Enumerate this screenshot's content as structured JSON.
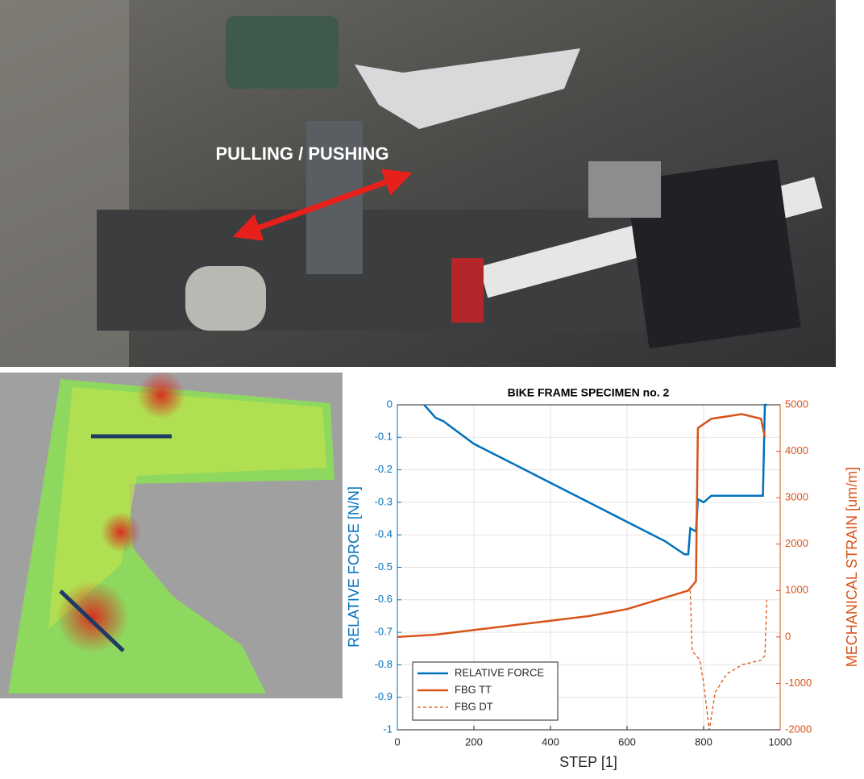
{
  "photo": {
    "annotation": "PULLING / PUSHING"
  },
  "chart_data": {
    "type": "line",
    "title": "BIKE FRAME SPECIMEN no. 2",
    "x_label": "STEP [1]",
    "y_label": "RELATIVE FORCE [N/N]",
    "y2_label": "MECHANICAL STRAIN [um/m]",
    "xlim": [
      0,
      1000
    ],
    "xticks": [
      0,
      200,
      400,
      600,
      800,
      1000
    ],
    "ylim": [
      -1,
      0
    ],
    "yticks": [
      -1,
      -0.9,
      -0.8,
      -0.7,
      -0.6,
      -0.5,
      -0.4,
      -0.3,
      -0.2,
      -0.1,
      0
    ],
    "y2lim": [
      -2000,
      5000
    ],
    "y2ticks": [
      -2000,
      -1000,
      0,
      1000,
      2000,
      3000,
      4000,
      5000
    ],
    "grid": true,
    "legend": "lower left",
    "series": [
      {
        "name": "RELATIVE FORCE",
        "color": "#0072bd",
        "linestyle": "solid",
        "x": [
          70,
          100,
          120,
          200,
          300,
          400,
          500,
          600,
          700,
          750,
          760,
          765,
          780,
          785,
          800,
          820,
          900,
          955,
          960,
          965
        ],
        "values": [
          0,
          -0.04,
          -0.05,
          -0.12,
          -0.18,
          -0.24,
          -0.3,
          -0.36,
          -0.42,
          -0.46,
          -0.46,
          -0.38,
          -0.39,
          -0.29,
          -0.3,
          -0.28,
          -0.28,
          -0.28,
          0,
          0
        ]
      },
      {
        "name": "FBG TT",
        "color": "#d95319",
        "linestyle": "solid",
        "axis": "y2",
        "x": [
          0,
          100,
          200,
          300,
          400,
          500,
          600,
          700,
          760,
          780,
          785,
          820,
          900,
          950,
          960
        ],
        "values": [
          0,
          50,
          150,
          250,
          350,
          450,
          600,
          850,
          1000,
          1200,
          4500,
          4700,
          4800,
          4700,
          4300
        ]
      },
      {
        "name": "FBG DT",
        "color": "#d95319",
        "linestyle": "dashed",
        "axis": "y2",
        "x": [
          765,
          770,
          790,
          800,
          815,
          830,
          860,
          900,
          950,
          960,
          965
        ],
        "values": [
          1000,
          -300,
          -500,
          -1000,
          -2000,
          -1200,
          -800,
          -600,
          -500,
          -400,
          800
        ]
      }
    ]
  }
}
